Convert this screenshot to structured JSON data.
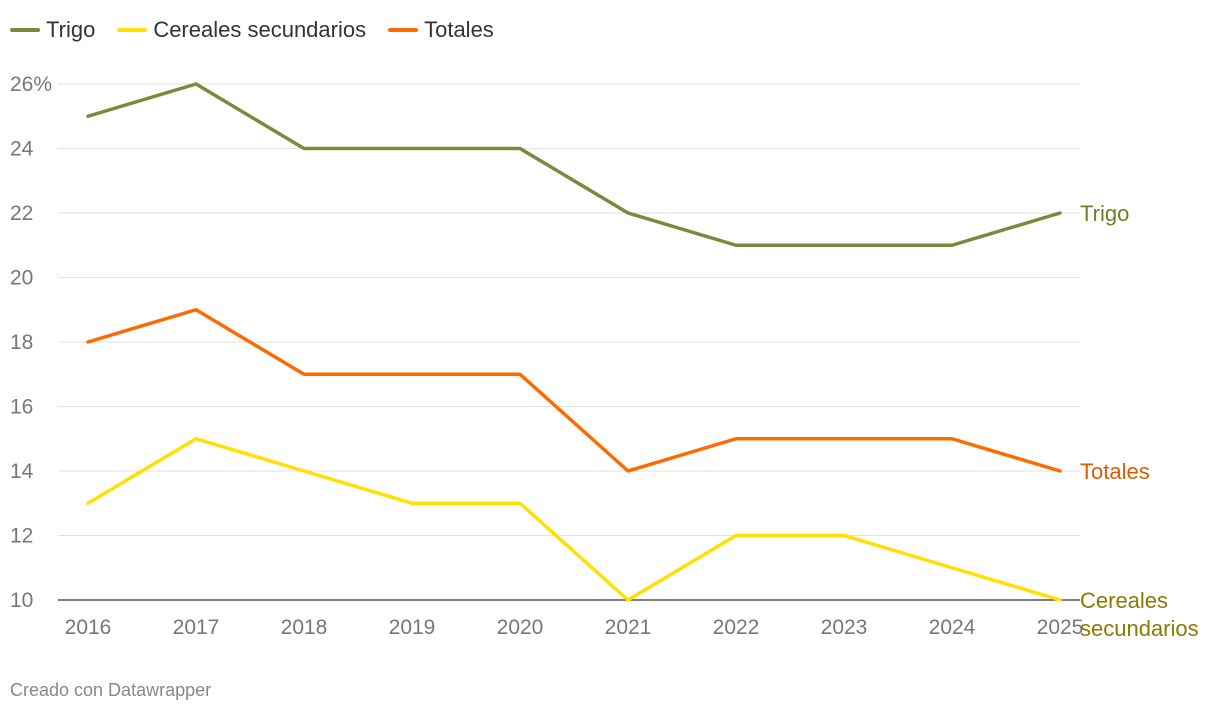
{
  "chart_data": {
    "type": "line",
    "title": "",
    "xlabel": "",
    "ylabel": "",
    "x": [
      "2016",
      "2017",
      "2018",
      "2019",
      "2020",
      "2021",
      "2022",
      "2023",
      "2024",
      "2025"
    ],
    "ylim": [
      10,
      26
    ],
    "yticks": [
      10,
      12,
      14,
      16,
      18,
      20,
      22,
      24,
      26
    ],
    "ytick_labels": [
      "10",
      "12",
      "14",
      "16",
      "18",
      "20",
      "22",
      "24",
      "26%"
    ],
    "legend_position": "top-left",
    "grid": true,
    "series": [
      {
        "name": "Trigo",
        "color": "#7a8a3c",
        "end_label": [
          "Trigo"
        ],
        "end_label_color": "#6f7f2a",
        "values": [
          25,
          26,
          24,
          24,
          24,
          22,
          21,
          21,
          21,
          22
        ]
      },
      {
        "name": "Cereales secundarios",
        "color": "#ffe000",
        "end_label": [
          "Cereales",
          "secundarios"
        ],
        "end_label_color": "#8a7a00",
        "values": [
          13,
          15,
          14,
          13,
          13,
          10,
          12,
          12,
          11,
          10
        ]
      },
      {
        "name": "Totales",
        "color": "#ff6a00",
        "end_label": [
          "Totales"
        ],
        "end_label_color": "#e05a00",
        "values": [
          18,
          19,
          17,
          17,
          17,
          14,
          15,
          15,
          15,
          14
        ]
      }
    ]
  },
  "footer": "Creado con Datawrapper"
}
